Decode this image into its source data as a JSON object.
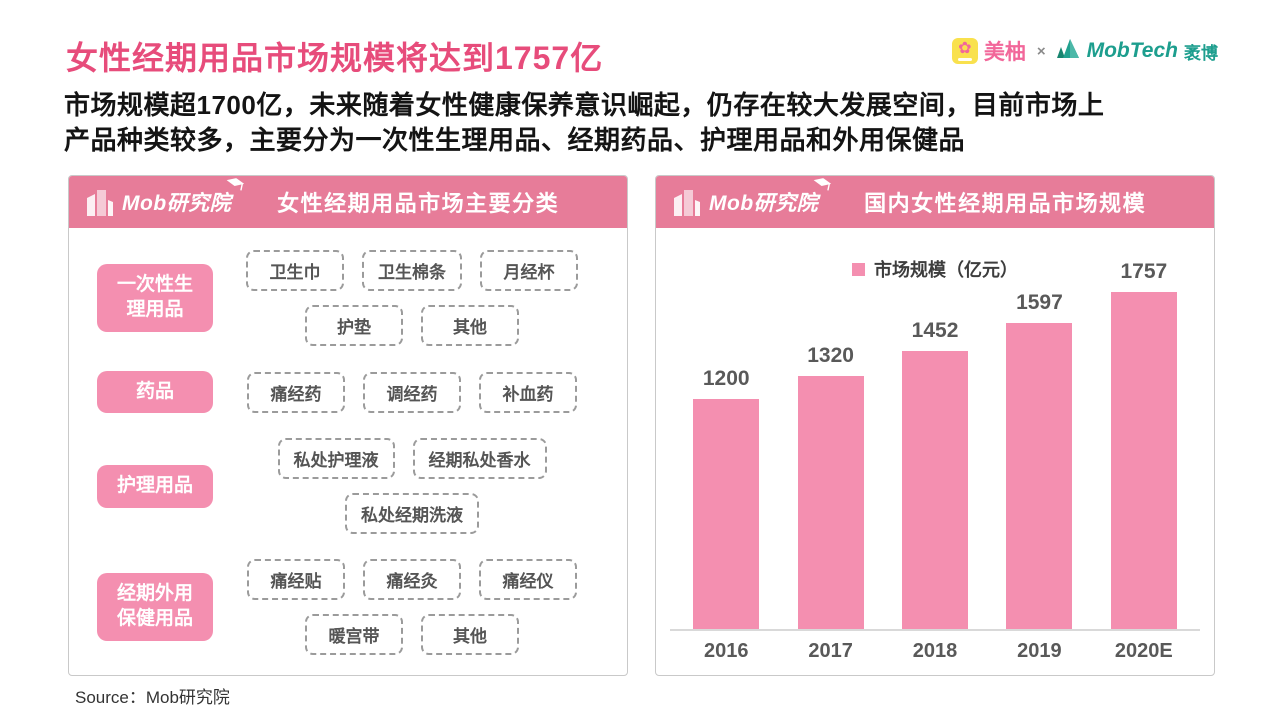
{
  "header": {
    "title": "女性经期用品市场规模将达到1757亿",
    "subtitle_lines": [
      "市场规模超1700亿，未来随着女性健康保养意识崛起，仍存在较大发展空间，目前市场上",
      "产品种类较多，主要分为一次性生理用品、经期药品、护理用品和外用保健品"
    ]
  },
  "brand": {
    "meiyou_label": "美柚",
    "cross": "×",
    "mobtech_label": "MobTech",
    "mobtech_suffix": "袤博",
    "meiyou_pink": "#F2679A",
    "meiyou_yellow": "#F9E14D",
    "mobtech_teal": "#1D9E8E"
  },
  "left_panel": {
    "logo_text": "Mob研究院",
    "panel_title": "女性经期用品市场主要分类",
    "categories": [
      {
        "label_lines": [
          "一次性生",
          "理用品"
        ],
        "item_rows": [
          [
            "卫生巾",
            "卫生棉条",
            "月经杯"
          ],
          [
            "护垫",
            "其他"
          ]
        ]
      },
      {
        "label_lines": [
          "药品"
        ],
        "item_rows": [
          [
            "痛经药",
            "调经药",
            "补血药"
          ]
        ]
      },
      {
        "label_lines": [
          "护理用品"
        ],
        "item_rows": [
          [
            "私处护理液",
            "经期私处香水"
          ],
          [
            "私处经期洗液"
          ]
        ]
      },
      {
        "label_lines": [
          "经期外用",
          "保健用品"
        ],
        "item_rows": [
          [
            "痛经贴",
            "痛经灸",
            "痛经仪"
          ],
          [
            "暖宫带",
            "其他"
          ]
        ]
      }
    ]
  },
  "right_panel": {
    "logo_text": "Mob研究院",
    "panel_title": "国内女性经期用品市场规模"
  },
  "chart_data": {
    "type": "bar",
    "title": "国内女性经期用品市场规模",
    "legend": "市场规模（亿元）",
    "categories": [
      "2016",
      "2017",
      "2018",
      "2019",
      "2020E"
    ],
    "values": [
      1200,
      1320,
      1452,
      1597,
      1757
    ],
    "ylim": [
      0,
      1800
    ],
    "bar_color": "#F48FB0",
    "value_label_color": "#595959",
    "grid": false,
    "legend_position": "top"
  },
  "footer": {
    "source": "Source：Mob研究院"
  },
  "colors": {
    "title_pink": "#E74C7B",
    "panel_header_pink": "#E77C99",
    "pill_pink": "#F48FB0",
    "axis_gray": "#D9D9D9"
  }
}
